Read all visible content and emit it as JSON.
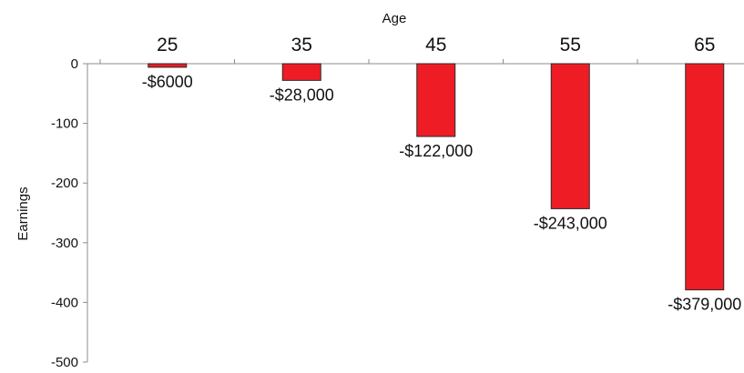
{
  "chart_data": {
    "type": "bar",
    "xlabel": "Age",
    "ylabel": "Earnings",
    "categories": [
      "25",
      "35",
      "45",
      "55",
      "65"
    ],
    "values": [
      -6,
      -28,
      -122,
      -243,
      -379
    ],
    "data_labels": [
      "-$6000",
      "-$28,000",
      "-$122,000",
      "-$243,000",
      "-$379,000"
    ],
    "ylim": [
      -500,
      0
    ],
    "yticks": [
      0,
      -100,
      -200,
      -300,
      -400,
      -500
    ],
    "x_axis_position": "top",
    "grid": false,
    "legend": "none",
    "bar_color": "#ee1c25"
  }
}
